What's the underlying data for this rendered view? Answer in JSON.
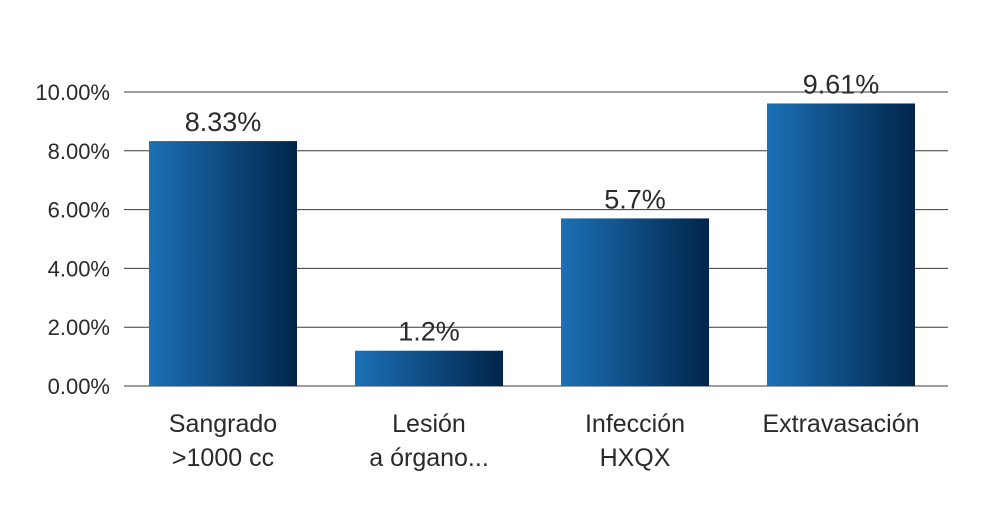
{
  "chart_data": {
    "type": "bar",
    "title": "",
    "xlabel": "",
    "ylabel": "",
    "categories": [
      [
        "Sangrado",
        ">1000 cc"
      ],
      [
        "Lesión",
        "a órgano..."
      ],
      [
        "Infección",
        "HXQX"
      ],
      [
        "Extravasación"
      ]
    ],
    "values": [
      8.33,
      1.2,
      5.7,
      9.61
    ],
    "data_labels": [
      "8.33%",
      "1.2%",
      "5.7%",
      "9.61%"
    ],
    "ylim": [
      0,
      10
    ],
    "yticks": [
      0,
      2,
      4,
      6,
      8,
      10
    ],
    "ytick_labels": [
      "0.00%",
      "2.00%",
      "4.00%",
      "6.00%",
      "8.00%",
      "10.00%"
    ],
    "grid": true,
    "legend": "none",
    "bar_gradient": [
      "#1c70b6",
      "#00254a"
    ]
  }
}
